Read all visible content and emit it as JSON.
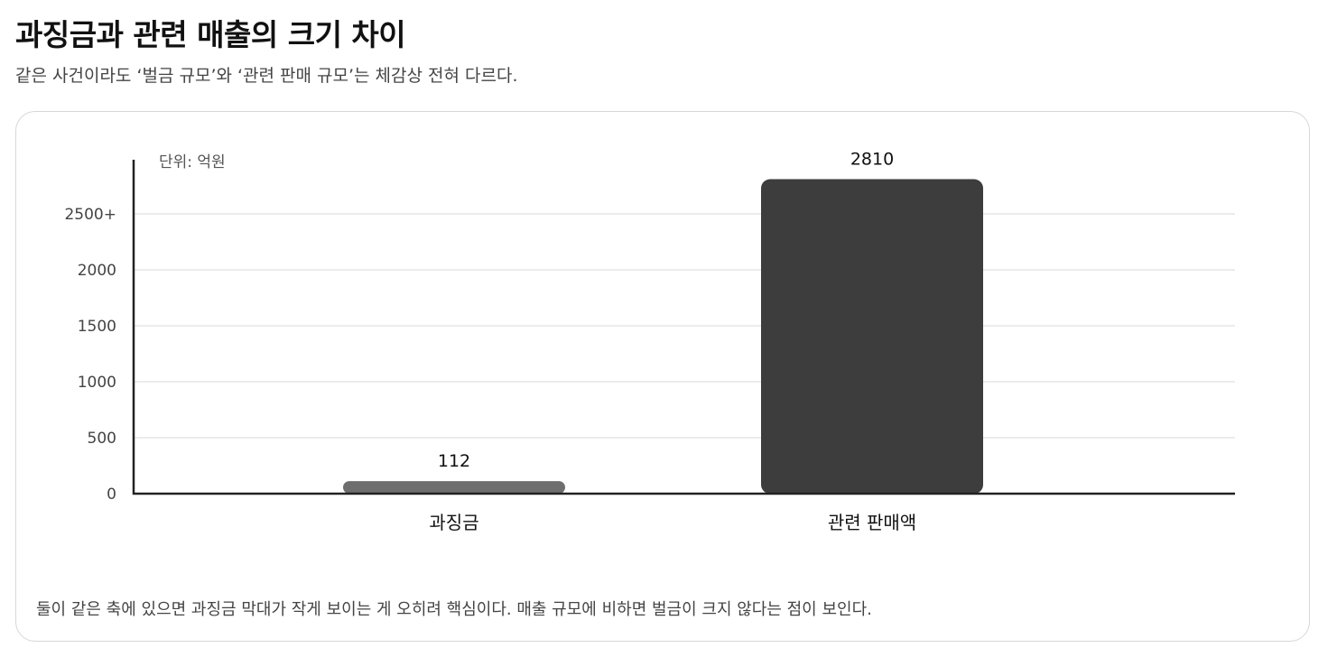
{
  "header": {
    "title": "과징금과 관련 매출의 크기 차이",
    "subtitle": "같은 사건이라도 ‘벌금 규모’와 ‘관련 판매 규모’는 체감상 전혀 다르다."
  },
  "note": "둘이 같은 축에 있으면 과징금 막대가 작게 보이는 게 오히려 핵심이다. 매출 규모에 비하면 벌금이 크지 않다는 점이 보인다.",
  "chart_data": {
    "type": "bar",
    "unit_label": "단위: 억원",
    "categories": [
      "과징금",
      "관련 판매액"
    ],
    "values": [
      112,
      2810
    ],
    "value_labels": [
      "112",
      "2810"
    ],
    "bar_colors": [
      "#6e6e6e",
      "#3d3d3d"
    ],
    "y_ticks": [
      0,
      500,
      1000,
      1500,
      2000,
      2500
    ],
    "y_tick_labels": [
      "0",
      "500",
      "1000",
      "1500",
      "2000",
      "2500+"
    ],
    "ylim": [
      0,
      3000
    ],
    "grid": true,
    "legend": "none"
  }
}
